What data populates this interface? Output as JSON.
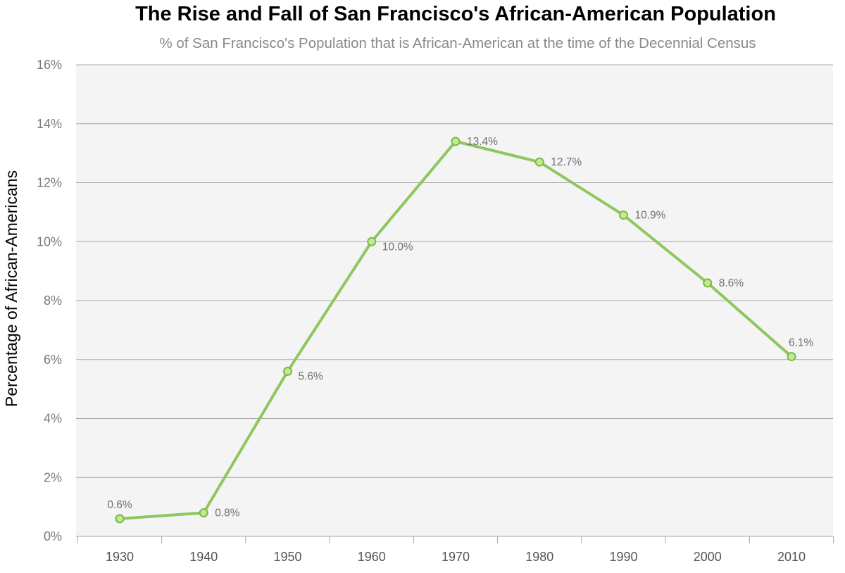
{
  "chart_data": {
    "type": "line",
    "title": "The Rise and Fall of San Francisco's African-American Population",
    "subtitle": "% of San Francisco's Population that is African-American at the time of the Decennial Census",
    "xlabel": "",
    "ylabel": "Percentage of African-Americans",
    "categories": [
      "1930",
      "1940",
      "1950",
      "1960",
      "1970",
      "1980",
      "1990",
      "2000",
      "2010"
    ],
    "series": [
      {
        "values": [
          0.6,
          0.8,
          5.6,
          10.0,
          13.4,
          12.7,
          10.9,
          8.6,
          6.1
        ],
        "labels": [
          "0.6%",
          "0.8%",
          "5.6%",
          "10.0%",
          "13.4%",
          "12.7%",
          "10.9%",
          "8.6%",
          "6.1%"
        ]
      }
    ],
    "ylim": [
      0,
      16
    ],
    "yticks": [
      0,
      2,
      4,
      6,
      8,
      10,
      12,
      14,
      16
    ],
    "ytick_labels": [
      "0%",
      "2%",
      "4%",
      "6%",
      "8%",
      "10%",
      "12%",
      "14%",
      "16%"
    ],
    "grid": true,
    "legend": "none",
    "colors": {
      "line": "#8ec760",
      "marker_fill": "#c2eb8f",
      "marker_stroke": "#7cb84a",
      "plot_background": "#f4f4f4",
      "gridline": "#a8a8a8"
    }
  }
}
